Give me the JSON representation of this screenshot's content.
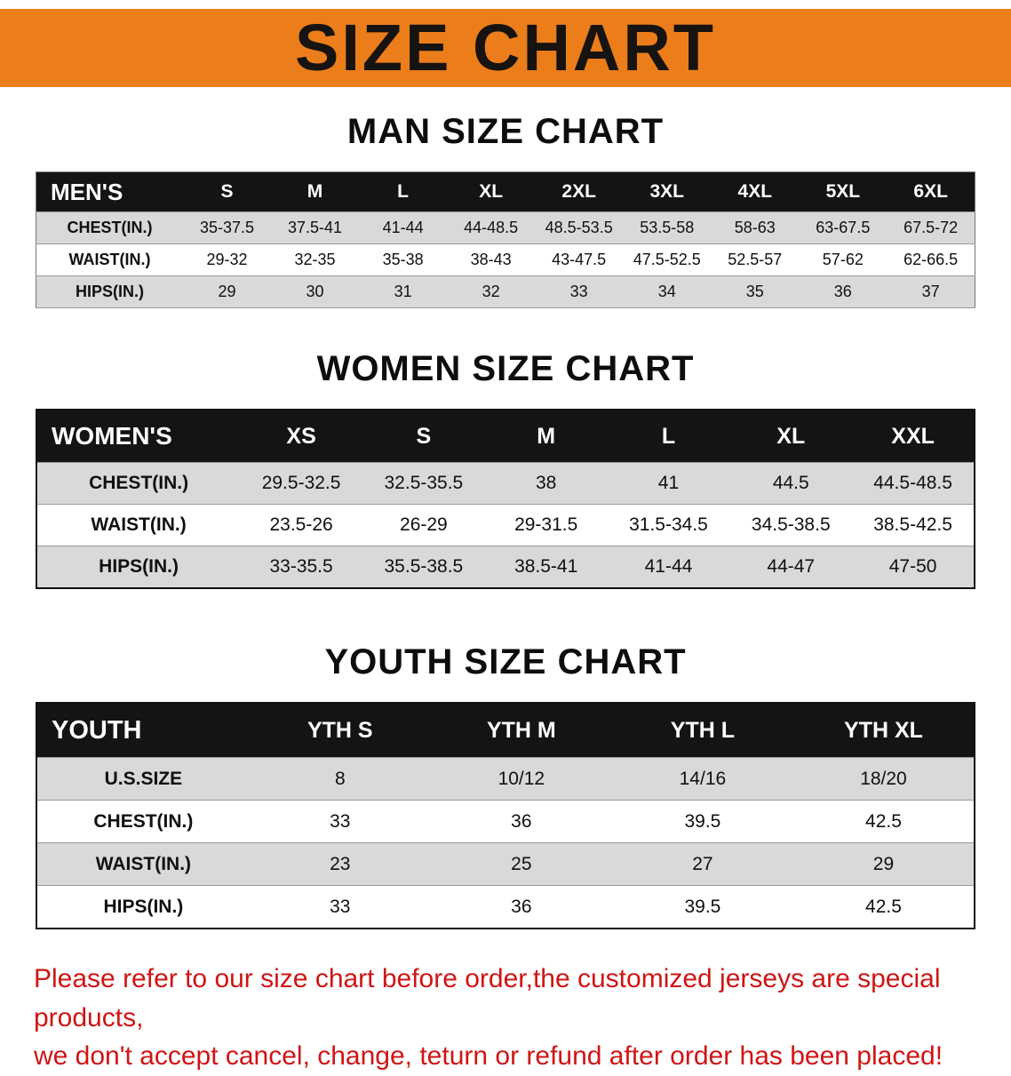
{
  "banner": {
    "title": "SIZE CHART",
    "bg_color": "#ec7d1b",
    "text_color": "#161310"
  },
  "sections": [
    {
      "heading": "MAN SIZE CHART",
      "table": {
        "header": [
          "MEN'S",
          "S",
          "M",
          "L",
          "XL",
          "2XL",
          "3XL",
          "4XL",
          "5XL",
          "6XL"
        ],
        "rows": [
          [
            "CHEST(IN.)",
            "35-37.5",
            "37.5-41",
            "41-44",
            "44-48.5",
            "48.5-53.5",
            "53.5-58",
            "58-63",
            "63-67.5",
            "67.5-72"
          ],
          [
            "WAIST(IN.)",
            "29-32",
            "32-35",
            "35-38",
            "38-43",
            "43-47.5",
            "47.5-52.5",
            "52.5-57",
            "57-62",
            "62-66.5"
          ],
          [
            "HIPS(IN.)",
            "29",
            "30",
            "31",
            "32",
            "33",
            "34",
            "35",
            "36",
            "37"
          ]
        ]
      }
    },
    {
      "heading": "WOMEN SIZE CHART",
      "table": {
        "header": [
          "WOMEN'S",
          "XS",
          "S",
          "M",
          "L",
          "XL",
          "XXL"
        ],
        "rows": [
          [
            "CHEST(IN.)",
            "29.5-32.5",
            "32.5-35.5",
            "38",
            "41",
            "44.5",
            "44.5-48.5"
          ],
          [
            "WAIST(IN.)",
            "23.5-26",
            "26-29",
            "29-31.5",
            "31.5-34.5",
            "34.5-38.5",
            "38.5-42.5"
          ],
          [
            "HIPS(IN.)",
            "33-35.5",
            "35.5-38.5",
            "38.5-41",
            "41-44",
            "44-47",
            "47-50"
          ]
        ]
      }
    },
    {
      "heading": "YOUTH SIZE CHART",
      "table": {
        "header": [
          "YOUTH",
          "YTH S",
          "YTH M",
          "YTH L",
          "YTH XL"
        ],
        "rows": [
          [
            "U.S.SIZE",
            "8",
            "10/12",
            "14/16",
            "18/20"
          ],
          [
            "CHEST(IN.)",
            "33",
            "36",
            "39.5",
            "42.5"
          ],
          [
            "WAIST(IN.)",
            "23",
            "25",
            "27",
            "29"
          ],
          [
            "HIPS(IN.)",
            "33",
            "36",
            "39.5",
            "42.5"
          ]
        ]
      }
    }
  ],
  "footnote": {
    "line1": "Please refer to our size chart before order,the customized jerseys are special products,",
    "line2": "we don't accept cancel, change, teturn or refund after order has been placed!"
  }
}
